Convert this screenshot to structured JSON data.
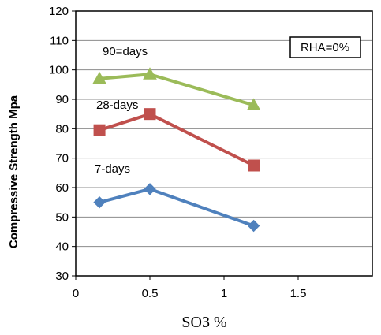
{
  "chart_data": {
    "type": "line",
    "title": "",
    "xlabel": "SO3 %",
    "ylabel": "Compressive Strength Mpa",
    "xlim": [
      0,
      2
    ],
    "ylim": [
      30,
      120
    ],
    "xticks": [
      0,
      0.5,
      1,
      1.5
    ],
    "xtick_labels": [
      "0",
      "0.5",
      "1",
      "1.5"
    ],
    "yticks": [
      30,
      40,
      50,
      60,
      70,
      80,
      90,
      100,
      110,
      120
    ],
    "ytick_labels": [
      "30",
      "40",
      "50",
      "60",
      "70",
      "80",
      "90",
      "100",
      "110",
      "120"
    ],
    "grid": "horizontal",
    "legend": "none",
    "series": [
      {
        "name": "90=days",
        "x": [
          0.16,
          0.5,
          1.2
        ],
        "values": [
          97,
          98.5,
          88
        ],
        "color": "#9bbb59",
        "marker": "triangle"
      },
      {
        "name": "28-days",
        "x": [
          0.16,
          0.5,
          1.2
        ],
        "values": [
          79.5,
          85,
          67.5
        ],
        "color": "#c0504d",
        "marker": "square"
      },
      {
        "name": "7-days",
        "x": [
          0.16,
          0.5,
          1.2
        ],
        "values": [
          55,
          59.5,
          47
        ],
        "color": "#4f81bd",
        "marker": "diamond"
      }
    ],
    "annotation_box": "RHA=0%"
  }
}
